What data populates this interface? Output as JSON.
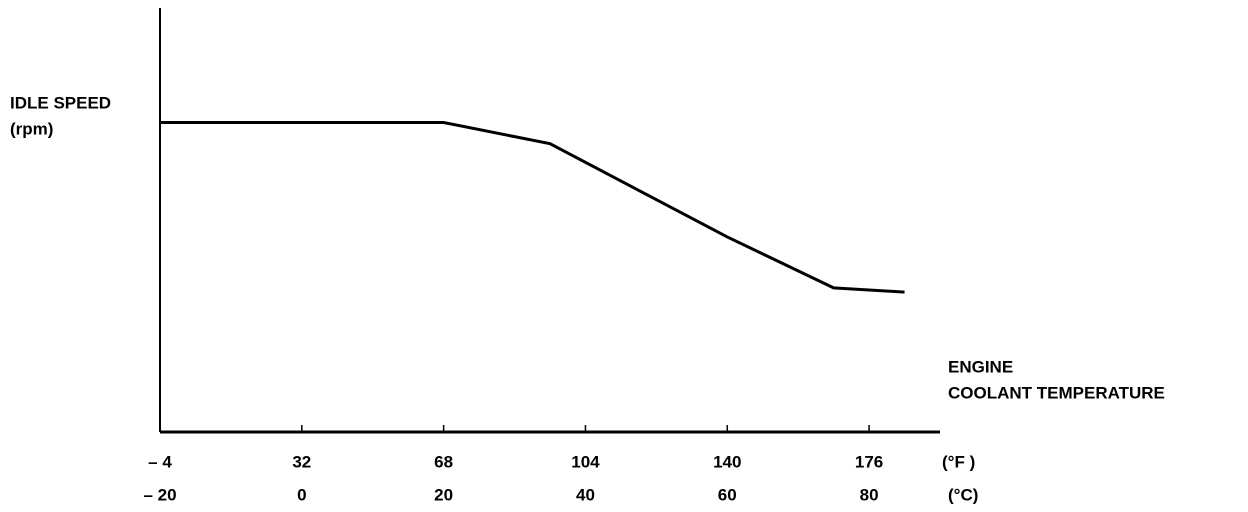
{
  "chart_data": {
    "type": "line",
    "ylabel": [
      "IDLE SPEED",
      "(rpm)"
    ],
    "xlabel": [
      "ENGINE",
      "COOLANT TEMPERATURE"
    ],
    "x": [
      -20,
      0,
      20,
      35,
      60,
      75,
      85
    ],
    "series": [
      {
        "name": "idle speed",
        "color": "#000000",
        "values": [
          73,
          73,
          73,
          68,
          46,
          34,
          33
        ]
      }
    ],
    "xlim": [
      -20,
      90
    ],
    "xticks": [
      {
        "value": -20,
        "label": "– 20"
      },
      0,
      20,
      40,
      60,
      80
    ],
    "xunit": "(°C)",
    "x2lim": [
      -4,
      194
    ],
    "x2ticks": [
      {
        "value": -4,
        "label": "– 4"
      },
      32,
      68,
      104,
      140,
      176
    ],
    "x2unit": "(°F )",
    "ylim": [
      0,
      100
    ],
    "grid": false
  }
}
